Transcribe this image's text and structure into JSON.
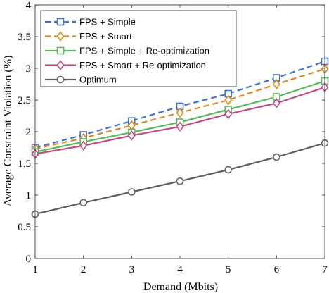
{
  "chart_data": {
    "type": "line",
    "xlabel": "Demand (Mbits)",
    "ylabel": "Average Constraint Violation (%)",
    "xlim": [
      1,
      7
    ],
    "ylim": [
      0,
      4
    ],
    "xticks": [
      "1",
      "2",
      "3",
      "4",
      "5",
      "6",
      "7"
    ],
    "yticks": [
      "0",
      "0.5",
      "1",
      "1.5",
      "2",
      "2.5",
      "3",
      "3.5",
      "4"
    ],
    "grid": false,
    "legend_position": "top-left",
    "x": [
      1,
      2,
      3,
      4,
      5,
      6,
      7
    ],
    "series": [
      {
        "name": "FPS + Simple",
        "values": [
          1.75,
          1.95,
          2.17,
          2.4,
          2.6,
          2.85,
          3.11
        ],
        "color": "#4472C4",
        "dash": "dashed",
        "marker": "square"
      },
      {
        "name": "FPS + Smart",
        "values": [
          1.73,
          1.9,
          2.1,
          2.3,
          2.5,
          2.75,
          2.99
        ],
        "color": "#D98C1F",
        "dash": "dashed",
        "marker": "diamond"
      },
      {
        "name": "FPS + Simple + Re-optimization",
        "values": [
          1.68,
          1.84,
          1.99,
          2.15,
          2.35,
          2.55,
          2.8
        ],
        "color": "#5CB85C",
        "dash": "solid",
        "marker": "square"
      },
      {
        "name": "FPS + Smart + Re-optimization",
        "values": [
          1.65,
          1.78,
          1.94,
          2.08,
          2.28,
          2.45,
          2.7
        ],
        "color": "#C24C84",
        "dash": "solid",
        "marker": "diamond"
      },
      {
        "name": "Optimum",
        "values": [
          0.7,
          0.88,
          1.05,
          1.22,
          1.4,
          1.6,
          1.82
        ],
        "color": "#5F5F5F",
        "dash": "solid",
        "marker": "circle"
      }
    ]
  }
}
